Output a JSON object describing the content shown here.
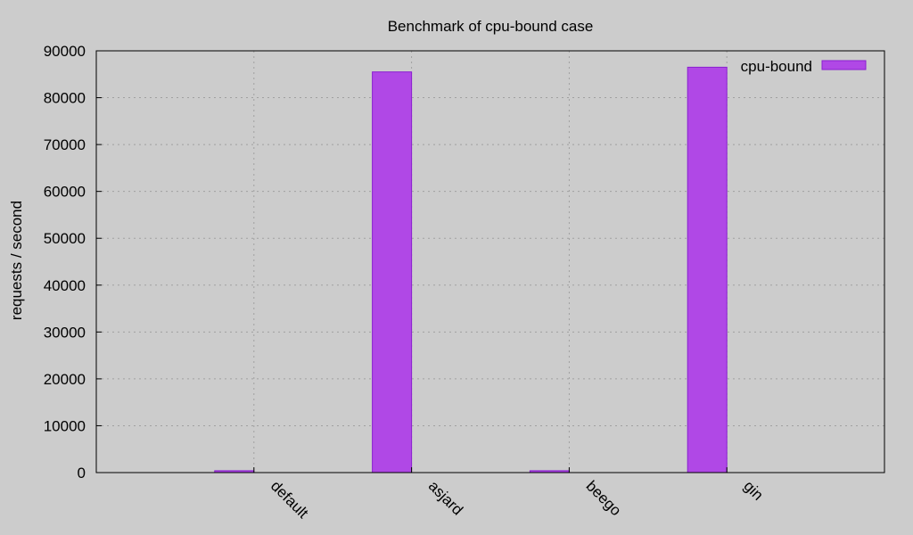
{
  "chart_data": {
    "type": "bar",
    "title": "Benchmark of cpu-bound case",
    "xlabel": "",
    "ylabel": "requests / second",
    "categories": [
      "default",
      "asjard",
      "beego",
      "gin"
    ],
    "series": [
      {
        "name": "cpu-bound",
        "values": [
          400,
          85500,
          400,
          86500
        ],
        "color": "#b048e6",
        "border_color": "#8a1fd0"
      }
    ],
    "ylim": [
      0,
      90000
    ],
    "yticks": [
      0,
      10000,
      20000,
      30000,
      40000,
      50000,
      60000,
      70000,
      80000,
      90000
    ],
    "ytick_labels": [
      "0",
      "10000",
      "20000",
      "30000",
      "40000",
      "50000",
      "60000",
      "70000",
      "80000",
      "90000"
    ],
    "grid": true,
    "legend_position": "top-right",
    "background_color": "#cccccc"
  }
}
